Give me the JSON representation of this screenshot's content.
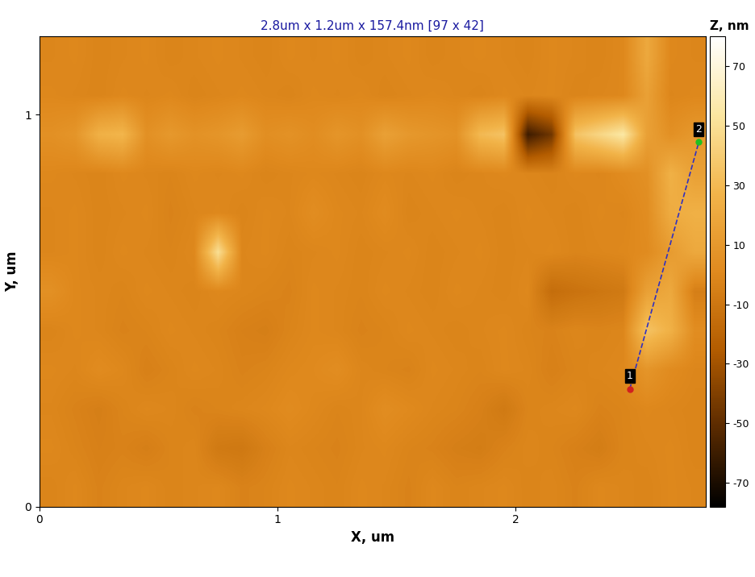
{
  "chart_data": {
    "type": "heatmap",
    "title": "2.8um x 1.2um x 157.4nm [97 x 42]",
    "x_label": "X, um",
    "y_label": "Y, um",
    "xlim": [
      0,
      2.8
    ],
    "ylim": [
      0,
      1.2
    ],
    "xticks": [
      0,
      1,
      2
    ],
    "yticks": [
      0,
      1
    ],
    "colorbar_label": "Z, nm",
    "colorbar_range": [
      -78,
      80
    ],
    "colorbar_ticks": [
      -70,
      -50,
      -30,
      -10,
      10,
      30,
      50,
      70
    ],
    "cells": [
      [
        -2,
        0,
        -3,
        -1,
        0,
        -2,
        -1,
        0,
        -3,
        -2,
        0,
        -1,
        -2,
        0,
        -1,
        -3,
        0,
        -2,
        -1,
        0,
        -2,
        -1,
        -3,
        0,
        -1,
        -2,
        0,
        -1
      ],
      [
        0,
        -2,
        -4,
        -3,
        -5,
        -2,
        -1,
        -8,
        -9,
        -4,
        -1,
        -2,
        -3,
        -1,
        0,
        -2,
        -3,
        -5,
        -6,
        -3,
        -1,
        -2,
        -4,
        -6,
        -2,
        -1,
        0,
        -2
      ],
      [
        -1,
        -3,
        -5,
        -2,
        0,
        -1,
        -3,
        -2,
        -1,
        0,
        2,
        0,
        -2,
        -1,
        3,
        1,
        -1,
        -2,
        -4,
        -8,
        -2,
        -1,
        0,
        -3,
        -2,
        0,
        -1,
        -2
      ],
      [
        0,
        -1,
        2,
        0,
        -4,
        -2,
        0,
        -1,
        -3,
        -2,
        0,
        1,
        3,
        -1,
        -2,
        -3,
        0,
        -1,
        -2,
        0,
        -1,
        -4,
        -2,
        -1,
        0,
        8,
        2,
        -1
      ],
      [
        -2,
        0,
        -1,
        -3,
        -2,
        0,
        -1,
        -2,
        -4,
        -5,
        -2,
        0,
        -1,
        -3,
        -2,
        0,
        -1,
        -2,
        -1,
        0,
        -2,
        -3,
        -1,
        -2,
        -1,
        35,
        25,
        3
      ],
      [
        5,
        0,
        -1,
        -2,
        0,
        -1,
        -2,
        0,
        -1,
        -2,
        -3,
        0,
        -1,
        -2,
        0,
        -1,
        -2,
        0,
        -1,
        -2,
        0,
        -15,
        -12,
        -10,
        -8,
        15,
        20,
        -5
      ],
      [
        -1,
        0,
        -2,
        0,
        -1,
        -2,
        0,
        50,
        -1,
        0,
        -2,
        -1,
        0,
        -2,
        -1,
        0,
        -2,
        -1,
        0,
        -2,
        -1,
        0,
        -2,
        -1,
        0,
        2,
        12,
        20
      ],
      [
        -1,
        0,
        -2,
        -1,
        0,
        -3,
        -1,
        0,
        -2,
        0,
        -1,
        3,
        0,
        -1,
        2,
        -2,
        -1,
        0,
        -1,
        -2,
        0,
        -1,
        -2,
        0,
        -1,
        3,
        22,
        25
      ],
      [
        0,
        -1,
        -2,
        0,
        -1,
        -2,
        0,
        -1,
        0,
        -2,
        -1,
        0,
        -1,
        -2,
        0,
        -1,
        0,
        -2,
        -1,
        0,
        -1,
        -2,
        0,
        -1,
        2,
        5,
        25,
        15
      ],
      [
        5,
        8,
        25,
        28,
        5,
        10,
        6,
        8,
        12,
        4,
        6,
        3,
        8,
        5,
        15,
        10,
        8,
        6,
        30,
        35,
        -60,
        -45,
        35,
        45,
        55,
        15,
        5,
        10
      ],
      [
        0,
        -1,
        -2,
        0,
        -1,
        0,
        -2,
        -1,
        0,
        -1,
        -2,
        0,
        -1,
        0,
        -2,
        -1,
        0,
        -1,
        -2,
        0,
        -1,
        0,
        -2,
        -1,
        0,
        15,
        -1,
        0
      ],
      [
        -1,
        0,
        -2,
        -1,
        0,
        -2,
        -1,
        0,
        -1,
        -2,
        0,
        -1,
        0,
        -2,
        -1,
        0,
        -2,
        -1,
        0,
        -1,
        -2,
        0,
        -1,
        -2,
        0,
        20,
        0,
        -1
      ]
    ],
    "profile_line": {
      "start": [
        2.48,
        0.3
      ],
      "end": [
        2.77,
        0.93
      ],
      "labels": [
        "1",
        "2"
      ]
    }
  }
}
